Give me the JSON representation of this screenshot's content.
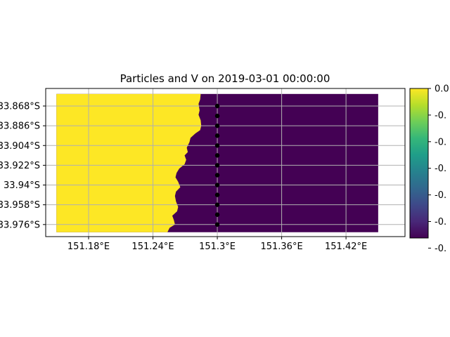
{
  "chart_data": {
    "type": "heatmap",
    "title": "Particles and V on 2019-03-01 00:00:00",
    "xlabel": "",
    "ylabel": "",
    "xlim": [
      151.14,
      151.475
    ],
    "ylim": [
      -33.987,
      -33.852
    ],
    "x_ticks": [
      151.18,
      151.24,
      151.3,
      151.36,
      151.42
    ],
    "x_tick_labels": [
      "151.18°E",
      "151.24°E",
      "151.3°E",
      "151.36°E",
      "151.42°E"
    ],
    "y_ticks": [
      -33.868,
      -33.886,
      -33.904,
      -33.922,
      -33.94,
      -33.958,
      -33.976
    ],
    "y_tick_labels": [
      "33.868°S",
      "33.886°S",
      "33.904°S",
      "33.922°S",
      "33.94°S",
      "33.958°S",
      "33.976°S"
    ],
    "field_extent": {
      "lon": [
        151.15,
        151.45
      ],
      "lat": [
        -33.983,
        -33.857
      ]
    },
    "grid": true,
    "colormap": "viridis",
    "colorbar_range": [
      -0.12,
      0.0
    ],
    "colorbar_tick_labels": [
      "0.0",
      "-0.",
      "-0.",
      "-0.",
      "-0.",
      "-0.",
      "-0."
    ],
    "colors": {
      "high": "#fde725",
      "low": "#440154",
      "particle": "#000000"
    },
    "boundary": [
      {
        "lat": -33.857,
        "lon": 151.2845
      },
      {
        "lat": -33.862,
        "lon": 151.284
      },
      {
        "lat": -33.866,
        "lon": 151.2825
      },
      {
        "lat": -33.872,
        "lon": 151.2835
      },
      {
        "lat": -33.876,
        "lon": 151.2825
      },
      {
        "lat": -33.881,
        "lon": 151.2845
      },
      {
        "lat": -33.886,
        "lon": 151.285
      },
      {
        "lat": -33.89,
        "lon": 151.284
      },
      {
        "lat": -33.893,
        "lon": 151.2795
      },
      {
        "lat": -33.897,
        "lon": 151.275
      },
      {
        "lat": -33.901,
        "lon": 151.274
      },
      {
        "lat": -33.906,
        "lon": 151.2715
      },
      {
        "lat": -33.91,
        "lon": 151.2725
      },
      {
        "lat": -33.913,
        "lon": 151.2695
      },
      {
        "lat": -33.917,
        "lon": 151.271
      },
      {
        "lat": -33.921,
        "lon": 151.2695
      },
      {
        "lat": -33.925,
        "lon": 151.2645
      },
      {
        "lat": -33.929,
        "lon": 151.262
      },
      {
        "lat": -33.933,
        "lon": 151.261
      },
      {
        "lat": -33.937,
        "lon": 151.2635
      },
      {
        "lat": -33.942,
        "lon": 151.2655
      },
      {
        "lat": -33.946,
        "lon": 151.2615
      },
      {
        "lat": -33.95,
        "lon": 151.2605
      },
      {
        "lat": -33.955,
        "lon": 151.2615
      },
      {
        "lat": -33.96,
        "lon": 151.2635
      },
      {
        "lat": -33.964,
        "lon": 151.2625
      },
      {
        "lat": -33.968,
        "lon": 151.258
      },
      {
        "lat": -33.972,
        "lon": 151.2595
      },
      {
        "lat": -33.976,
        "lon": 151.2605
      },
      {
        "lat": -33.979,
        "lon": 151.2555
      },
      {
        "lat": -33.983,
        "lon": 151.2535
      }
    ],
    "particles": [
      {
        "lon": 151.3,
        "lat": -33.868
      },
      {
        "lon": 151.3,
        "lat": -33.877
      },
      {
        "lon": 151.3,
        "lat": -33.886
      },
      {
        "lon": 151.3,
        "lat": -33.895
      },
      {
        "lon": 151.3,
        "lat": -33.904
      },
      {
        "lon": 151.3,
        "lat": -33.913
      },
      {
        "lon": 151.3,
        "lat": -33.922
      },
      {
        "lon": 151.3,
        "lat": -33.931
      },
      {
        "lon": 151.3,
        "lat": -33.94
      },
      {
        "lon": 151.3,
        "lat": -33.949
      },
      {
        "lon": 151.3,
        "lat": -33.958
      },
      {
        "lon": 151.3,
        "lat": -33.967
      },
      {
        "lon": 151.3,
        "lat": -33.976
      }
    ]
  }
}
